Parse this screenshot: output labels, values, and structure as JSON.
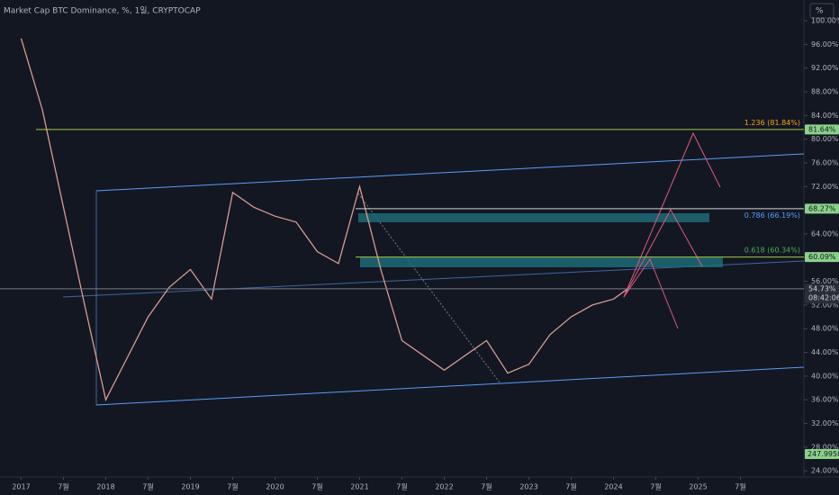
{
  "chart_data": {
    "type": "line",
    "title": "Market Cap BTC Dominance, %, 1일, CRYPTOCAP",
    "scale_button": "%",
    "color": "#d99a8e",
    "x": [
      "2017-01",
      "2017-04",
      "2017-07",
      "2017-10",
      "2018-01",
      "2018-04",
      "2018-07",
      "2018-10",
      "2019-01",
      "2019-04",
      "2019-07",
      "2019-10",
      "2020-01",
      "2020-04",
      "2020-07",
      "2020-10",
      "2021-01",
      "2021-04",
      "2021-07",
      "2021-10",
      "2022-01",
      "2022-04",
      "2022-07",
      "2022-10",
      "2023-01",
      "2023-04",
      "2023-07",
      "2023-10",
      "2024-01",
      "2024-03"
    ],
    "values": [
      97,
      85,
      68.5,
      52,
      36,
      43,
      50,
      55,
      58,
      53,
      71,
      68.5,
      67,
      66,
      61,
      59,
      72,
      58,
      46,
      43.5,
      41,
      43.5,
      46,
      40.5,
      42,
      47,
      50,
      52,
      53,
      54.73
    ],
    "xlim": [
      "2016-10",
      "2026-04"
    ],
    "xticks": [
      {
        "value": "2017-01",
        "label": "2017"
      },
      {
        "value": "2017-07",
        "label": "7월"
      },
      {
        "value": "2018-01",
        "label": "2018"
      },
      {
        "value": "2018-07",
        "label": "7월"
      },
      {
        "value": "2019-01",
        "label": "2019"
      },
      {
        "value": "2019-07",
        "label": "7월"
      },
      {
        "value": "2020-01",
        "label": "2020"
      },
      {
        "value": "2020-07",
        "label": "7월"
      },
      {
        "value": "2021-01",
        "label": "2021"
      },
      {
        "value": "2021-07",
        "label": "7월"
      },
      {
        "value": "2022-01",
        "label": "2022"
      },
      {
        "value": "2022-07",
        "label": "7월"
      },
      {
        "value": "2023-01",
        "label": "2023"
      },
      {
        "value": "2023-07",
        "label": "7월"
      },
      {
        "value": "2024-01",
        "label": "2024"
      },
      {
        "value": "2024-07",
        "label": "7월"
      },
      {
        "value": "2025-01",
        "label": "2025"
      },
      {
        "value": "2025-07",
        "label": "7월"
      }
    ],
    "ylim": [
      22.2,
      103.5
    ],
    "yticks": [
      {
        "value": 24,
        "label": "24.00%"
      },
      {
        "value": 28,
        "label": "28.00%"
      },
      {
        "value": 32,
        "label": "32.00%"
      },
      {
        "value": 36,
        "label": "36.00%"
      },
      {
        "value": 40,
        "label": "40.00%"
      },
      {
        "value": 44,
        "label": "44.00%"
      },
      {
        "value": 48,
        "label": "48.00%"
      },
      {
        "value": 52,
        "label": "52.00%"
      },
      {
        "value": 56,
        "label": "56.00%"
      },
      {
        "value": 60,
        "label": "60.00%"
      },
      {
        "value": 64,
        "label": "64.00%"
      },
      {
        "value": 68,
        "label": "68.00%"
      },
      {
        "value": 72,
        "label": "72.00%"
      },
      {
        "value": 76,
        "label": "76.00%"
      },
      {
        "value": 80,
        "label": "80.00%"
      },
      {
        "value": 84,
        "label": "84.00%"
      },
      {
        "value": 88,
        "label": "88.00%"
      },
      {
        "value": 92,
        "label": "92.00%"
      },
      {
        "value": 96,
        "label": "96.00%"
      },
      {
        "value": 100,
        "label": "100.00%"
      }
    ],
    "levels": [
      {
        "value": 81.64,
        "label": "81.64%",
        "color": "#a5c94a"
      },
      {
        "value": 68.27,
        "label": "68.27%",
        "color": "#d1d4dc"
      },
      {
        "value": 60.09,
        "label": "60.09%",
        "color": "#a5c94a"
      },
      {
        "value": 54.73,
        "label": "54.73%",
        "color": "#787b86"
      }
    ],
    "countdown": "08:42:06",
    "fib_labels": [
      {
        "value": 81.84,
        "label": "1.236 (81.84%)",
        "color": "#f7a21b"
      },
      {
        "value": 66.19,
        "label": "0.786 (66.19%)",
        "color": "#5b9cf6"
      },
      {
        "value": 60.34,
        "label": "0.618 (60.34%)",
        "color": "#4caf50"
      }
    ],
    "volume_label": "247.9958"
  }
}
